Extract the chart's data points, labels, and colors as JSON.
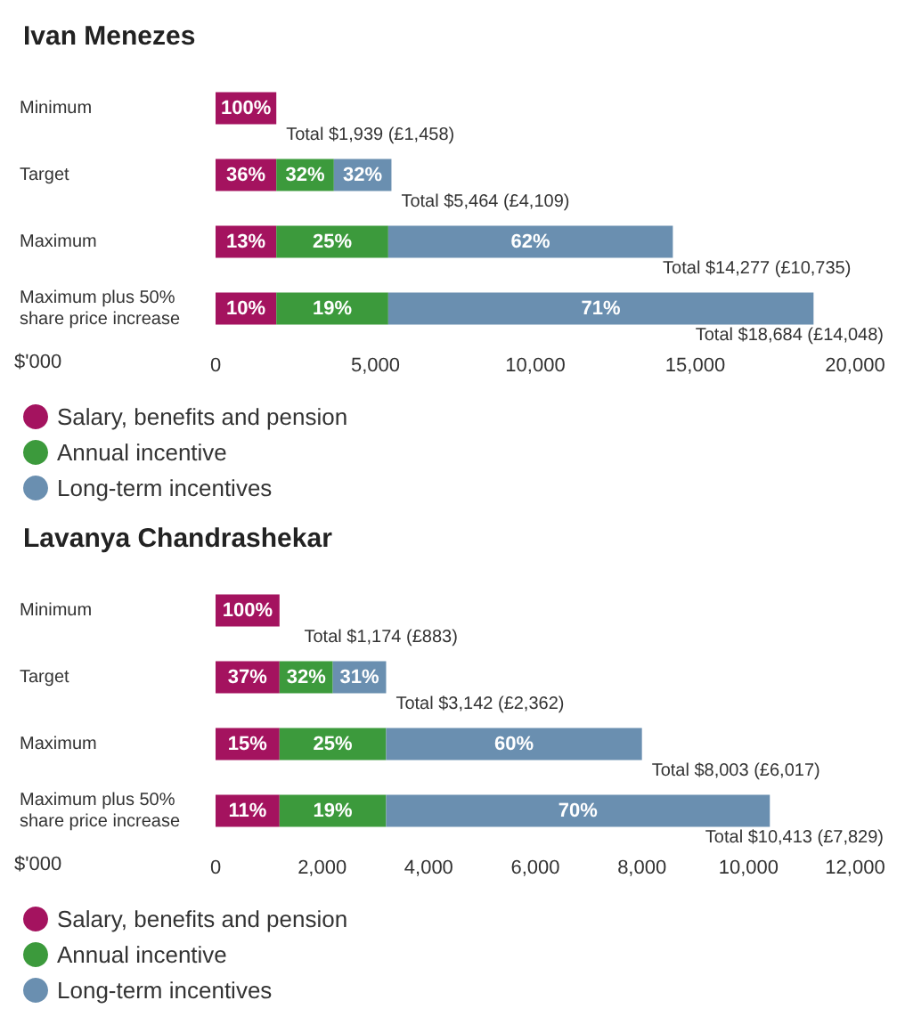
{
  "chart_data": [
    {
      "type": "bar",
      "title": "Ivan Menezes",
      "orientation": "horizontal",
      "stacked": true,
      "categories": [
        "Minimum",
        "Target",
        "Maximum",
        "Maximum plus 50%\nshare price increase"
      ],
      "xlabel": "$'000",
      "xlim": [
        0,
        20000
      ],
      "xticks": [
        0,
        {
          "value": 5000,
          "label": "5,000"
        },
        {
          "value": 10000,
          "label": "10,000"
        },
        {
          "value": 15000,
          "label": "15,000"
        },
        {
          "value": 20000,
          "label": "20,000"
        }
      ],
      "grid": false,
      "legend": "bottom left",
      "series": [
        {
          "name": "Salary, benefits and pension",
          "color": "#a4135f",
          "values": [
            1900,
            1900,
            1900,
            1900
          ]
        },
        {
          "name": "Annual incentive",
          "color": "#3c9a3c",
          "values": [
            null,
            1800,
            3500,
            3500
          ]
        },
        {
          "name": "Long-term incentives",
          "color": "#6a8fb0",
          "values": [
            null,
            1800,
            8900,
            13300
          ]
        }
      ],
      "annotations": [
        "100%",
        "36%",
        "32%",
        "32%",
        "13%",
        "25%",
        "62%",
        "10%",
        "19%",
        "71%"
      ],
      "totals": [
        "Total $1,939 (£1,458)",
        "Total $5,464 (£4,109)",
        "Total $14,277 (£10,735)",
        "Total $18,684 (£14,048)"
      ]
    },
    {
      "type": "bar",
      "title": "Lavanya Chandrashekar",
      "orientation": "horizontal",
      "stacked": true,
      "categories": [
        "Minimum",
        "Target",
        "Maximum",
        "Maximum plus 50%\nshare price increase"
      ],
      "xlabel": "$'000",
      "xlim": [
        0,
        12000
      ],
      "xticks": [
        0,
        {
          "value": 2000,
          "label": "2,000"
        },
        {
          "value": 4000,
          "label": "4,000"
        },
        {
          "value": 6000,
          "label": "6,000"
        },
        {
          "value": 8000,
          "label": "8,000"
        },
        {
          "value": 10000,
          "label": "10,000"
        },
        {
          "value": 12000,
          "label": "12,000"
        }
      ],
      "grid": false,
      "legend": "bottom left",
      "series": [
        {
          "name": "Salary, benefits and pension",
          "color": "#a4135f",
          "values": [
            1200,
            1200,
            1200,
            1200
          ]
        },
        {
          "name": "Annual incentive",
          "color": "#3c9a3c",
          "values": [
            null,
            1000,
            2000,
            2000
          ]
        },
        {
          "name": "Long-term incentives",
          "color": "#6a8fb0",
          "values": [
            null,
            1000,
            4800,
            7200
          ]
        }
      ],
      "annotations": [
        "100%",
        "37%",
        "32%",
        "31%",
        "15%",
        "25%",
        "60%",
        "11%",
        "19%",
        "70%"
      ],
      "totals": [
        "Total $1,174 (£883)",
        "Total $3,142 (£2,362)",
        "Total $8,003 (£6,017)",
        "Total $10,413 (£7,829)"
      ]
    }
  ]
}
